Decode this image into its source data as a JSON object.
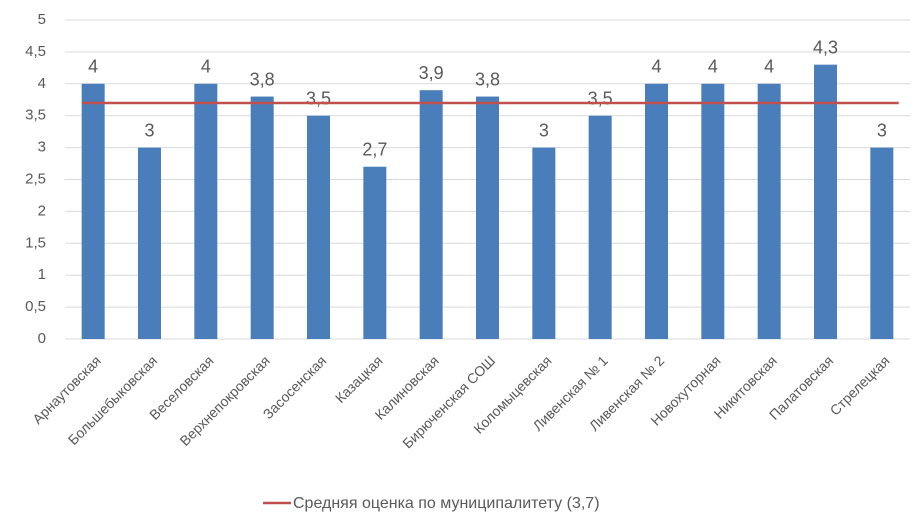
{
  "chart_data": {
    "type": "bar",
    "categories": [
      "Арнаутовская",
      "Большебыковская",
      "Веселовская",
      "Верхнепокровская",
      "Засосенская",
      "Казацкая",
      "Калиновская",
      "Бирюченская СОШ",
      "Коломыцевская",
      "Ливенская № 1",
      "Ливенская № 2",
      "Новохуторная",
      "Никитовская",
      "Палатовская",
      "Стрелецкая"
    ],
    "values": [
      4,
      3,
      4,
      3.8,
      3.5,
      2.7,
      3.9,
      3.8,
      3,
      3.5,
      4,
      4,
      4,
      4.3,
      3
    ],
    "value_labels": [
      "4",
      "3",
      "4",
      "3,8",
      "3,5",
      "2,7",
      "3,9",
      "3,8",
      "3",
      "3,5",
      "4",
      "4",
      "4",
      "4,3",
      "3"
    ],
    "color": "#4a7ebb",
    "reference_line": {
      "name": "Средняя оценка по муниципалитету (3,7)",
      "value": 3.7,
      "color": "#c0504d"
    },
    "ylim": [
      0,
      5
    ],
    "yticks": [
      0,
      {
        "value": 0.5,
        "label": "0,5"
      },
      1,
      {
        "value": 1.5,
        "label": "1,5"
      },
      2,
      {
        "value": 2.5,
        "label": "2,5"
      },
      3,
      {
        "value": 3.5,
        "label": "3,5"
      },
      4,
      {
        "value": 4.5,
        "label": "4,5"
      },
      5
    ],
    "grid": true,
    "legend": "bottom"
  }
}
